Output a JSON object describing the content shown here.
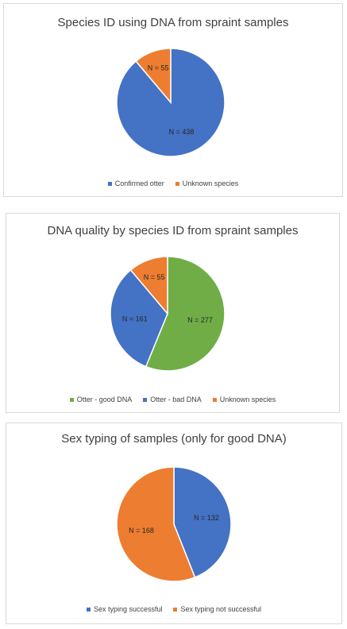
{
  "chart_data": [
    {
      "type": "pie",
      "title": "Species ID using DNA from spraint samples",
      "categories": [
        "Confirmed otter",
        "Unknown species"
      ],
      "values": [
        438,
        55
      ],
      "labels": [
        "N = 438",
        "N = 55"
      ],
      "colors": [
        "#4472c4",
        "#ed7d31"
      ],
      "legend": "bottom"
    },
    {
      "type": "pie",
      "title": "DNA quality by species ID from spraint samples",
      "categories": [
        "Otter - good DNA",
        "Otter - bad DNA",
        "Unknown species"
      ],
      "values": [
        277,
        161,
        55
      ],
      "labels": [
        "N = 277",
        "N = 161",
        "N = 55"
      ],
      "colors": [
        "#70ad47",
        "#4472c4",
        "#ed7d31"
      ],
      "legend": "bottom"
    },
    {
      "type": "pie",
      "title": "Sex typing of samples (only for good DNA)",
      "categories": [
        "Sex typing successful",
        "Sex typing not successful"
      ],
      "values": [
        132,
        168
      ],
      "labels": [
        "N = 132",
        "N = 168"
      ],
      "colors": [
        "#4472c4",
        "#ed7d31"
      ],
      "legend": "bottom"
    }
  ]
}
